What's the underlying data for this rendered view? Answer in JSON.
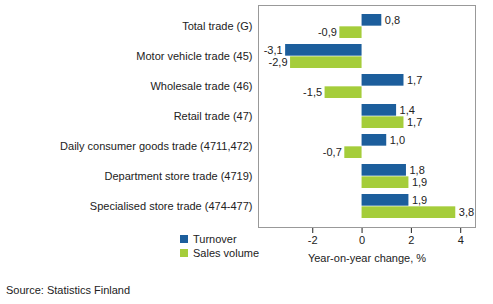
{
  "chart_data": {
    "type": "bar",
    "orientation": "horizontal",
    "categories": [
      "Total trade (G)",
      "Motor vehicle trade (45)",
      "Wholesale trade (46)",
      "Retail trade (47)",
      "Daily consumer goods trade (4711,472)",
      "Department store trade (4719)",
      "Specialised store trade (474-477)"
    ],
    "series": [
      {
        "name": "Turnover",
        "color": "#1c5e9c",
        "values": [
          0.8,
          -3.1,
          1.7,
          1.4,
          1.0,
          1.8,
          1.9
        ],
        "value_labels": [
          "0,8",
          "-3,1",
          "1,7",
          "1,4",
          "1,0",
          "1,8",
          "1,9"
        ]
      },
      {
        "name": "Sales volume",
        "color": "#a5cd3b",
        "values": [
          -0.9,
          -2.9,
          -1.5,
          1.7,
          -0.7,
          1.9,
          3.8
        ],
        "value_labels": [
          "-0,9",
          "-2,9",
          "-1,5",
          "1,7",
          "-0,7",
          "1,9",
          "3,8"
        ]
      }
    ],
    "x_label": "Year-on-year change, %",
    "xlim": [
      -4.2,
      4.6
    ],
    "xticks": [
      -2,
      0,
      2,
      4
    ],
    "data_labels": true,
    "legend": "lower left",
    "grid": false,
    "caption": "Source: Statistics Finland"
  }
}
